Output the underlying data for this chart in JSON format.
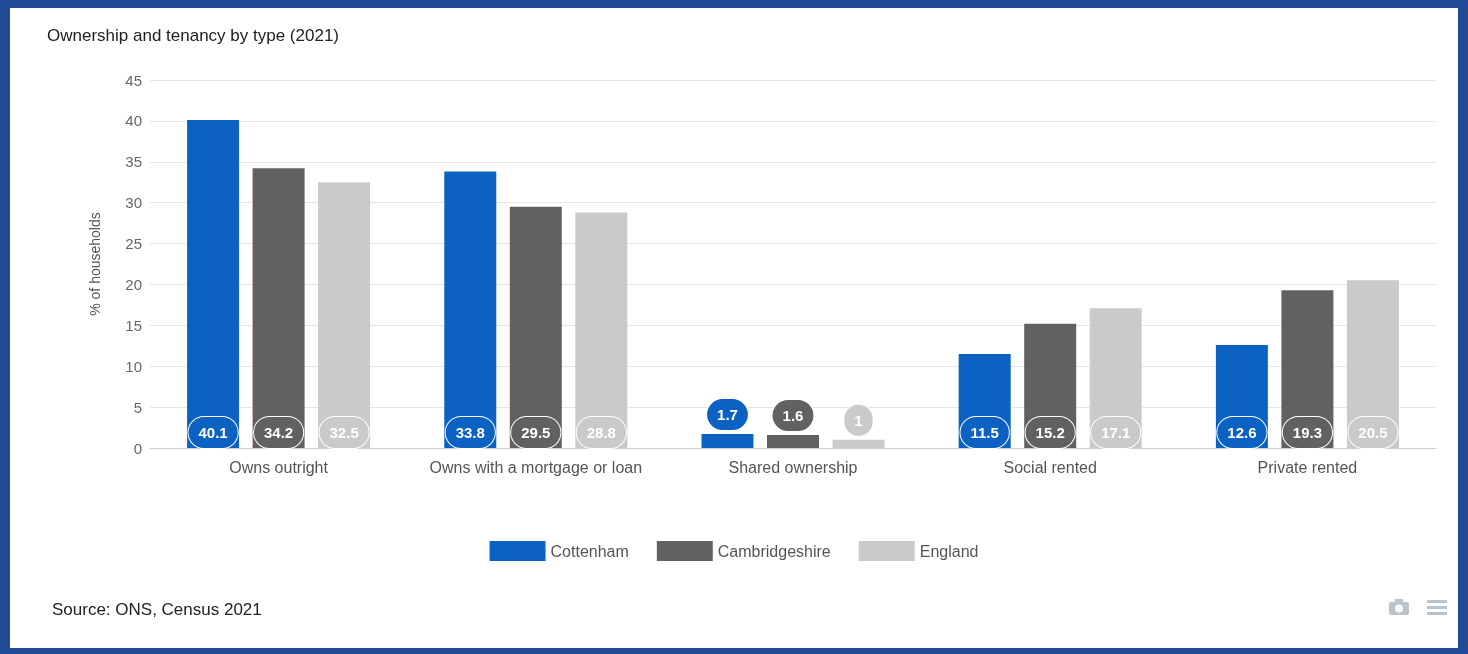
{
  "chart_data": {
    "type": "bar",
    "title": "Ownership and tenancy by type (2021)",
    "categories": [
      "Owns outright",
      "Owns with a mortgage or loan",
      "Shared ownership",
      "Social rented",
      "Private rented"
    ],
    "series": [
      {
        "name": "Cottenham",
        "color": "#0b62c2",
        "values": [
          40.1,
          33.8,
          1.7,
          11.5,
          12.6
        ]
      },
      {
        "name": "Cambridgeshire",
        "color": "#616161",
        "values": [
          34.2,
          29.5,
          1.6,
          15.2,
          19.3
        ]
      },
      {
        "name": "England",
        "color": "#cacaca",
        "values": [
          32.5,
          28.8,
          1,
          17.1,
          20.5
        ]
      }
    ],
    "ylabel": "% of households",
    "ylim": [
      0,
      45
    ],
    "yticks": [
      0,
      5,
      10,
      15,
      20,
      25,
      30,
      35,
      40,
      45
    ],
    "grid": "y",
    "legend": "bottom",
    "data_labels": true,
    "annotations": [
      "Source: ONS, Census 2021"
    ]
  }
}
